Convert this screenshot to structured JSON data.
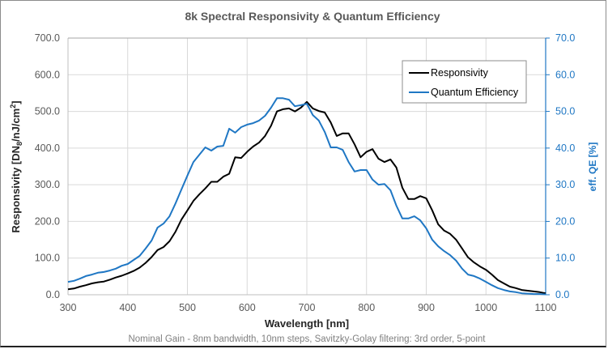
{
  "chart_data": {
    "type": "line",
    "title": "8k Spectral Responsivity & Quantum Efficiency",
    "xlabel": "Wavelength [nm]",
    "ylabel": "Responsivity [DN8/nJ/cm2]",
    "ylabel_parts": {
      "main": "Responsivity [DN",
      "sub": "8",
      "mid": "/nJ/cm",
      "sup": "2",
      "end": "]"
    },
    "y2label": "eff. QE [%]",
    "caption": "Nominal Gain - 8nm bandwidth, 10nm steps, Savitzky-Golay filtering: 3rd order, 5-point",
    "xlim": [
      300,
      1100
    ],
    "ylim": [
      0,
      700
    ],
    "y2lim": [
      0,
      70
    ],
    "xticks": [
      "300",
      "400",
      "500",
      "600",
      "700",
      "800",
      "900",
      "1000",
      "1100"
    ],
    "yticks": [
      "0.0",
      "100.0",
      "200.0",
      "300.0",
      "400.0",
      "500.0",
      "600.0",
      "700.0"
    ],
    "y2ticks": [
      "0.0",
      "10.0",
      "20.0",
      "30.0",
      "40.0",
      "50.0",
      "60.0",
      "70.0"
    ],
    "grid": true,
    "legend_position": "top-right",
    "x": [
      300,
      310,
      320,
      330,
      340,
      350,
      360,
      370,
      380,
      390,
      400,
      410,
      420,
      430,
      440,
      450,
      460,
      470,
      480,
      490,
      500,
      510,
      520,
      530,
      540,
      550,
      560,
      570,
      580,
      590,
      600,
      610,
      620,
      630,
      640,
      650,
      660,
      670,
      680,
      690,
      700,
      710,
      720,
      730,
      740,
      750,
      760,
      770,
      780,
      790,
      800,
      810,
      820,
      830,
      840,
      850,
      860,
      870,
      880,
      890,
      900,
      910,
      920,
      930,
      940,
      950,
      960,
      970,
      980,
      990,
      1000,
      1010,
      1020,
      1030,
      1040,
      1050,
      1060,
      1070,
      1080,
      1090,
      1100
    ],
    "series": [
      {
        "name": "Responsivity",
        "axis": "left",
        "color": "#000000",
        "values": [
          15,
          17,
          22,
          26,
          31,
          34,
          36,
          41,
          47,
          52,
          58,
          65,
          74,
          87,
          103,
          122,
          130,
          146,
          172,
          205,
          230,
          256,
          274,
          290,
          308,
          308,
          322,
          330,
          375,
          373,
          390,
          404,
          415,
          433,
          461,
          500,
          506,
          508,
          500,
          510,
          526,
          508,
          501,
          497,
          470,
          433,
          440,
          440,
          410,
          375,
          390,
          397,
          371,
          362,
          369,
          347,
          292,
          261,
          261,
          269,
          263,
          230,
          192,
          175,
          166,
          150,
          126,
          102,
          88,
          77,
          68,
          55,
          40,
          31,
          22,
          18,
          13,
          11,
          9,
          7,
          4
        ]
      },
      {
        "name": "Quantum Efficiency",
        "axis": "right",
        "color": "#1f77c4",
        "values": [
          3.5,
          3.8,
          4.4,
          5.1,
          5.5,
          6.0,
          6.2,
          6.6,
          7.1,
          7.9,
          8.4,
          9.5,
          10.6,
          12.6,
          14.8,
          18.3,
          19.4,
          21.4,
          24.9,
          28.7,
          32.5,
          36.2,
          38.2,
          40.2,
          39.3,
          40.4,
          40.6,
          45.3,
          44.2,
          45.7,
          46.4,
          46.8,
          47.5,
          48.8,
          51.0,
          53.6,
          53.6,
          53.2,
          51.4,
          51.7,
          52.1,
          49.0,
          47.5,
          44.4,
          40.2,
          40.2,
          39.5,
          36.2,
          33.6,
          34.0,
          34.0,
          31.4,
          30.0,
          30.2,
          28.5,
          24.3,
          20.8,
          20.8,
          21.4,
          20.3,
          18.1,
          15.0,
          13.2,
          11.9,
          10.8,
          9.3,
          7.1,
          5.5,
          5.1,
          4.4,
          3.5,
          2.6,
          1.8,
          1.3,
          0.9,
          0.7,
          0.4,
          0.3,
          0.2,
          0.2,
          0.1
        ]
      }
    ]
  }
}
